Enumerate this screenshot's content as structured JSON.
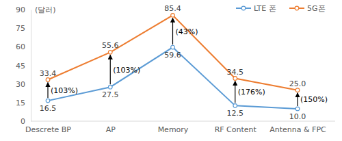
{
  "chart_data": {
    "type": "line",
    "y_label": "(달러)",
    "categories": [
      "Descrete BP",
      "AP",
      "Memory",
      "RF Content",
      "Antenna & FPC"
    ],
    "series": [
      {
        "name": "LTE 폰",
        "color": "#5b9bd5",
        "marker": "circle",
        "line_style": "solid",
        "values": [
          16.5,
          27.5,
          59.6,
          12.5,
          10.0
        ],
        "value_labels": [
          "16.5",
          "27.5",
          "59.6",
          "12.5",
          "10.0"
        ]
      },
      {
        "name": "5G폰",
        "color": "#ed7d31",
        "marker": "circle",
        "line_style": "solid",
        "values": [
          33.4,
          55.6,
          85.4,
          34.5,
          25.0
        ],
        "value_labels": [
          "33.4",
          "55.6",
          "85.4",
          "34.5",
          "25.0"
        ]
      }
    ],
    "annotations": [
      "(103%)",
      "(103%)",
      "(43%)",
      "(176%)",
      "(150%)"
    ],
    "ylim": [
      0,
      90
    ],
    "yticks": [
      0,
      15,
      30,
      45,
      60,
      75,
      90
    ],
    "grid": false,
    "legend": "upper right",
    "data_labels": true
  }
}
